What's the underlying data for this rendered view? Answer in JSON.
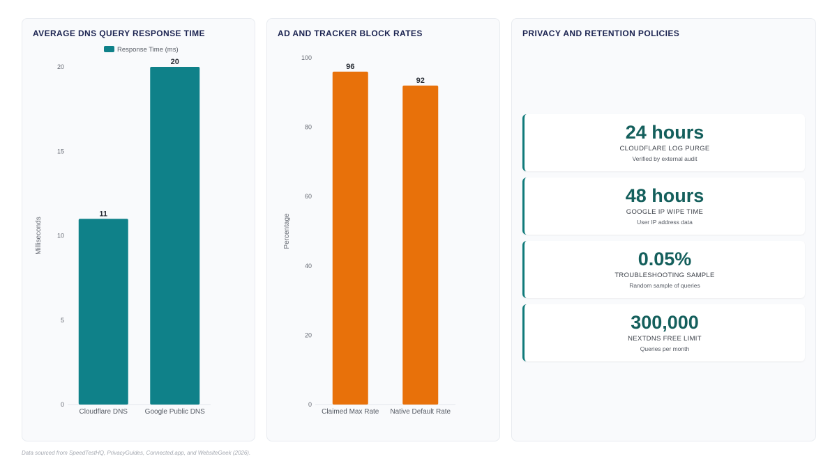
{
  "colors": {
    "dns_bar": "#0f8189",
    "block_bar": "#e8710a",
    "stat_accent": "#0f7a7a",
    "stat_value": "#145f5c",
    "title": "#1c2451"
  },
  "chart_data": [
    {
      "type": "bar",
      "title": "AVERAGE DNS QUERY RESPONSE TIME",
      "categories": [
        "Cloudflare DNS",
        "Google Public DNS"
      ],
      "series": [
        {
          "name": "Response Time (ms)",
          "values": [
            11,
            20
          ]
        }
      ],
      "ylabel": "Milliseconds",
      "ylim": [
        0,
        20
      ],
      "yticks": [
        0,
        5,
        10,
        15,
        20
      ],
      "legend": "top-center",
      "grid": false
    },
    {
      "type": "bar",
      "title": "AD AND TRACKER BLOCK RATES",
      "categories": [
        "Claimed Max Rate",
        "Native Default Rate"
      ],
      "series": [
        {
          "values": [
            96,
            92
          ]
        }
      ],
      "ylabel": "Percentage",
      "ylim": [
        0,
        100
      ],
      "yticks": [
        0,
        20,
        40,
        60,
        80,
        100
      ],
      "grid": false
    }
  ],
  "privacy": {
    "title": "PRIVACY AND RETENTION POLICIES",
    "stats": [
      {
        "value": "24 hours",
        "label": "CLOUDFLARE LOG PURGE",
        "sub": "Verified by external audit"
      },
      {
        "value": "48 hours",
        "label": "GOOGLE IP WIPE TIME",
        "sub": "User IP address data"
      },
      {
        "value": "0.05%",
        "label": "TROUBLESHOOTING SAMPLE",
        "sub": "Random sample of queries"
      },
      {
        "value": "300,000",
        "label": "NEXTDNS FREE LIMIT",
        "sub": "Queries per month"
      }
    ]
  },
  "footnote": "Data sourced from SpeedTestHQ, PrivacyGuides, Connected.app, and WebsiteGeek (2026)."
}
